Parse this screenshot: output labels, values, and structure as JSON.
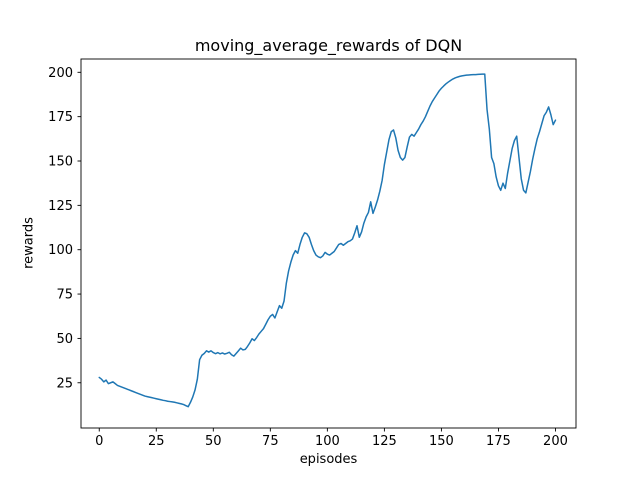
{
  "figure": {
    "background": "#ffffff",
    "text_color": "#000000",
    "spine_color": "#000000"
  },
  "chart_data": {
    "type": "line",
    "title": "moving_average_rewards of DQN",
    "xlabel": "episodes",
    "ylabel": "rewards",
    "series_name": "moving_average_rewards",
    "line_color": "#1f77b4",
    "grid": false,
    "legend": false,
    "xlim": [
      -8,
      209
    ],
    "ylim": [
      -0.5,
      207.5
    ],
    "xticks": [
      0,
      25,
      50,
      75,
      100,
      125,
      150,
      175,
      200
    ],
    "yticks": [
      25,
      50,
      75,
      100,
      125,
      150,
      175,
      200
    ],
    "x": [
      0,
      1,
      2,
      3,
      4,
      5,
      6,
      7,
      8,
      9,
      10,
      11,
      12,
      13,
      14,
      15,
      16,
      17,
      18,
      19,
      20,
      21,
      22,
      23,
      24,
      25,
      26,
      27,
      28,
      29,
      30,
      31,
      32,
      33,
      34,
      35,
      36,
      37,
      38,
      39,
      40,
      41,
      42,
      43,
      44,
      45,
      46,
      47,
      48,
      49,
      50,
      51,
      52,
      53,
      54,
      55,
      56,
      57,
      58,
      59,
      60,
      61,
      62,
      63,
      64,
      65,
      66,
      67,
      68,
      69,
      70,
      71,
      72,
      73,
      74,
      75,
      76,
      77,
      78,
      79,
      80,
      81,
      82,
      83,
      84,
      85,
      86,
      87,
      88,
      89,
      90,
      91,
      92,
      93,
      94,
      95,
      96,
      97,
      98,
      99,
      100,
      101,
      102,
      103,
      104,
      105,
      106,
      107,
      108,
      109,
      110,
      111,
      112,
      113,
      114,
      115,
      116,
      117,
      118,
      119,
      120,
      121,
      122,
      123,
      124,
      125,
      126,
      127,
      128,
      129,
      130,
      131,
      132,
      133,
      134,
      135,
      136,
      137,
      138,
      139,
      140,
      141,
      142,
      143,
      144,
      145,
      146,
      147,
      148,
      149,
      150,
      151,
      152,
      153,
      154,
      155,
      156,
      157,
      158,
      159,
      160,
      161,
      162,
      163,
      164,
      165,
      166,
      167,
      168,
      169,
      170,
      171,
      172,
      173,
      174,
      175,
      176,
      177,
      178,
      179,
      180,
      181,
      182,
      183,
      184,
      185,
      186,
      187,
      188,
      189,
      190,
      191,
      192,
      193,
      194,
      195,
      196,
      197,
      198,
      199,
      200
    ],
    "values": [
      28,
      27,
      25.5,
      26.5,
      24.5,
      25,
      25.5,
      24.5,
      23.5,
      23,
      22.5,
      22,
      21.5,
      21,
      20.5,
      20,
      19.5,
      19,
      18.5,
      18,
      17.5,
      17.2,
      16.9,
      16.6,
      16.3,
      16,
      15.7,
      15.4,
      15.1,
      14.9,
      14.6,
      14.4,
      14.2,
      14,
      13.7,
      13.4,
      13.1,
      12.7,
      12.1,
      11.5,
      14,
      17,
      21,
      27,
      38,
      40.5,
      41.5,
      43,
      42.3,
      43,
      42,
      41.4,
      42,
      41.3,
      41.8,
      41.2,
      41.6,
      42.2,
      40.8,
      40,
      41.5,
      43,
      44.5,
      43.5,
      43.8,
      45.5,
      47.5,
      49.8,
      48.8,
      50.5,
      52.5,
      54,
      55.5,
      58,
      60.5,
      62.5,
      63.5,
      61.5,
      65,
      68.5,
      67,
      71,
      81,
      88,
      93,
      97,
      99.5,
      98,
      103,
      107,
      109.5,
      109,
      107,
      103,
      99.5,
      97,
      96,
      95.5,
      96.5,
      98.5,
      97.5,
      97,
      98,
      99,
      101,
      103,
      103.5,
      102.5,
      103.5,
      104.5,
      105,
      106,
      109.5,
      113.5,
      107,
      110,
      115,
      118.5,
      121,
      127,
      120.5,
      124,
      128,
      133,
      139,
      148,
      155,
      162,
      166.5,
      167.5,
      163,
      156,
      152,
      150.5,
      152,
      158,
      163.5,
      165,
      164,
      166,
      168,
      170.5,
      172.5,
      175,
      178,
      181,
      183.5,
      185.5,
      187.5,
      189.5,
      191,
      192.3,
      193.5,
      194.5,
      195.4,
      196.2,
      196.8,
      197.3,
      197.7,
      198,
      198.2,
      198.4,
      198.5,
      198.6,
      198.7,
      198.7,
      198.8,
      198.9,
      199,
      199,
      179,
      168,
      152,
      148.5,
      141,
      136,
      133.5,
      137.5,
      134.5,
      143,
      150,
      157,
      161.5,
      164,
      152,
      140,
      133.5,
      132,
      138,
      144,
      151,
      157,
      162.5,
      166.5,
      171,
      175.5,
      177.5,
      180.5,
      176,
      170.5,
      173
    ]
  }
}
